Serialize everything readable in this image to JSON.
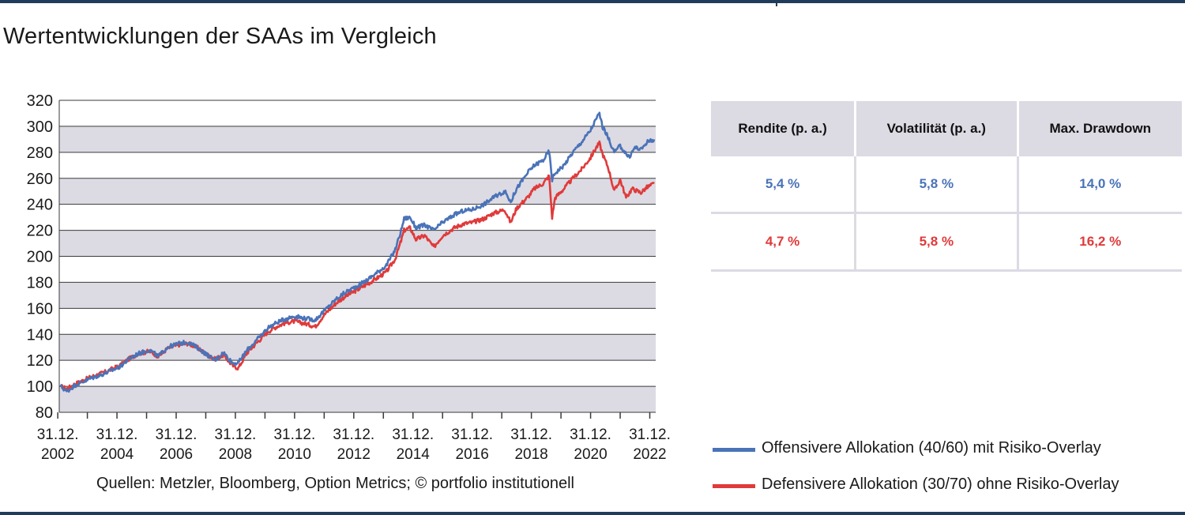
{
  "title": "Wertentwicklungen der SAAs im Vergleich",
  "source": "Quellen: Metzler, Bloomberg, Option Metrics; © portfolio institutionell",
  "colors": {
    "offensive": "#4a73b8",
    "defensive": "#e03a3a",
    "band": "#dcdae3",
    "frame": "#1f3c5a"
  },
  "table": {
    "headers": [
      "Rendite (p. a.)",
      "Volatilität (p. a.)",
      "Max. Drawdown"
    ],
    "rows": [
      {
        "color": "#4a73b8",
        "cells": [
          "5,4 %",
          "5,8 %",
          "14,0 %"
        ]
      },
      {
        "color": "#e03a3a",
        "cells": [
          "4,7 %",
          "5,8 %",
          "16,2 %"
        ]
      }
    ]
  },
  "legend": [
    {
      "label": "Offensivere Allokation (40/60) mit Risiko-Overlay",
      "color": "#4a73b8"
    },
    {
      "label": "Defensivere Allokation (30/70) ohne Risiko-Overlay",
      "color": "#e03a3a"
    }
  ],
  "chart_data": {
    "type": "line",
    "xlim": [
      2002.95,
      2023.1
    ],
    "ylim": [
      80,
      320
    ],
    "yticks": [
      80,
      100,
      120,
      140,
      160,
      180,
      200,
      220,
      240,
      260,
      280,
      300,
      320
    ],
    "xticks": [
      {
        "value": 2002.9,
        "line1": "31.12.",
        "line2": "2002"
      },
      {
        "value": 2004.9,
        "line1": "31.12.",
        "line2": "2004"
      },
      {
        "value": 2006.9,
        "line1": "31.12.",
        "line2": "2006"
      },
      {
        "value": 2008.9,
        "line1": "31.12.",
        "line2": "2008"
      },
      {
        "value": 2010.9,
        "line1": "31.12.",
        "line2": "2010"
      },
      {
        "value": 2012.9,
        "line1": "31.12.",
        "line2": "2012"
      },
      {
        "value": 2014.9,
        "line1": "31.12.",
        "line2": "2014"
      },
      {
        "value": 2016.9,
        "line1": "31.12.",
        "line2": "2016"
      },
      {
        "value": 2018.9,
        "line1": "31.12.",
        "line2": "2018"
      },
      {
        "value": 2020.9,
        "line1": "31.12.",
        "line2": "2020"
      },
      {
        "value": 2022.9,
        "line1": "31.12.",
        "line2": "2022"
      }
    ],
    "minor_xticks": [
      2003.9,
      2005.9,
      2007.9,
      2009.9,
      2011.9,
      2013.9,
      2015.9,
      2017.9,
      2019.9,
      2021.9
    ],
    "series": [
      {
        "name": "Offensivere Allokation (40/60) mit Risiko-Overlay",
        "color": "#4a73b8",
        "points": [
          [
            2003.0,
            100
          ],
          [
            2003.2,
            96
          ],
          [
            2003.5,
            101
          ],
          [
            2004.0,
            106
          ],
          [
            2004.5,
            110
          ],
          [
            2005.0,
            115
          ],
          [
            2005.3,
            121
          ],
          [
            2005.6,
            125
          ],
          [
            2006.0,
            128
          ],
          [
            2006.3,
            123
          ],
          [
            2006.6,
            130
          ],
          [
            2007.0,
            133
          ],
          [
            2007.3,
            134
          ],
          [
            2007.6,
            130
          ],
          [
            2007.9,
            125
          ],
          [
            2008.2,
            120
          ],
          [
            2008.5,
            126
          ],
          [
            2008.8,
            118
          ],
          [
            2009.0,
            118
          ],
          [
            2009.3,
            128
          ],
          [
            2009.6,
            135
          ],
          [
            2010.0,
            145
          ],
          [
            2010.3,
            149
          ],
          [
            2010.6,
            152
          ],
          [
            2010.9,
            154
          ],
          [
            2011.3,
            152
          ],
          [
            2011.6,
            151
          ],
          [
            2011.9,
            158
          ],
          [
            2012.3,
            167
          ],
          [
            2012.6,
            172
          ],
          [
            2013.0,
            177
          ],
          [
            2013.3,
            181
          ],
          [
            2013.6,
            186
          ],
          [
            2014.0,
            193
          ],
          [
            2014.3,
            205
          ],
          [
            2014.5,
            220
          ],
          [
            2014.6,
            229
          ],
          [
            2014.8,
            230
          ],
          [
            2015.0,
            222
          ],
          [
            2015.3,
            224
          ],
          [
            2015.6,
            220
          ],
          [
            2015.9,
            226
          ],
          [
            2016.3,
            232
          ],
          [
            2016.6,
            235
          ],
          [
            2016.9,
            236
          ],
          [
            2017.3,
            240
          ],
          [
            2017.6,
            245
          ],
          [
            2018.0,
            250
          ],
          [
            2018.2,
            242
          ],
          [
            2018.4,
            252
          ],
          [
            2018.8,
            265
          ],
          [
            2019.0,
            270
          ],
          [
            2019.3,
            274
          ],
          [
            2019.5,
            281
          ],
          [
            2019.6,
            259
          ],
          [
            2019.7,
            264
          ],
          [
            2020.0,
            270
          ],
          [
            2020.3,
            280
          ],
          [
            2020.6,
            288
          ],
          [
            2020.9,
            297
          ],
          [
            2021.1,
            306
          ],
          [
            2021.2,
            310
          ],
          [
            2021.3,
            300
          ],
          [
            2021.5,
            291
          ],
          [
            2021.7,
            280
          ],
          [
            2021.9,
            285
          ],
          [
            2022.2,
            276
          ],
          [
            2022.4,
            284
          ],
          [
            2022.6,
            282
          ],
          [
            2022.8,
            288
          ],
          [
            2023.05,
            290
          ]
        ]
      },
      {
        "name": "Defensivere Allokation (30/70) ohne Risiko-Overlay",
        "color": "#e03a3a",
        "points": [
          [
            2003.0,
            100
          ],
          [
            2003.2,
            98
          ],
          [
            2003.5,
            102
          ],
          [
            2004.0,
            107
          ],
          [
            2004.5,
            111
          ],
          [
            2005.0,
            116
          ],
          [
            2005.3,
            121
          ],
          [
            2005.6,
            125
          ],
          [
            2006.0,
            127
          ],
          [
            2006.3,
            123
          ],
          [
            2006.6,
            129
          ],
          [
            2007.0,
            132
          ],
          [
            2007.3,
            133
          ],
          [
            2007.6,
            130
          ],
          [
            2007.9,
            125
          ],
          [
            2008.2,
            121
          ],
          [
            2008.5,
            124
          ],
          [
            2008.8,
            116
          ],
          [
            2009.0,
            114
          ],
          [
            2009.3,
            126
          ],
          [
            2009.6,
            133
          ],
          [
            2010.0,
            142
          ],
          [
            2010.3,
            146
          ],
          [
            2010.6,
            149
          ],
          [
            2010.9,
            150
          ],
          [
            2011.3,
            148
          ],
          [
            2011.6,
            146
          ],
          [
            2011.9,
            155
          ],
          [
            2012.3,
            164
          ],
          [
            2012.6,
            169
          ],
          [
            2013.0,
            174
          ],
          [
            2013.3,
            178
          ],
          [
            2013.6,
            182
          ],
          [
            2014.0,
            188
          ],
          [
            2014.3,
            198
          ],
          [
            2014.5,
            212
          ],
          [
            2014.6,
            220
          ],
          [
            2014.8,
            222
          ],
          [
            2015.0,
            213
          ],
          [
            2015.3,
            216
          ],
          [
            2015.6,
            207
          ],
          [
            2015.9,
            216
          ],
          [
            2016.3,
            222
          ],
          [
            2016.6,
            225
          ],
          [
            2016.9,
            226
          ],
          [
            2017.3,
            229
          ],
          [
            2017.6,
            233
          ],
          [
            2018.0,
            236
          ],
          [
            2018.2,
            226
          ],
          [
            2018.4,
            237
          ],
          [
            2018.8,
            246
          ],
          [
            2019.0,
            252
          ],
          [
            2019.3,
            256
          ],
          [
            2019.5,
            262
          ],
          [
            2019.6,
            230
          ],
          [
            2019.7,
            245
          ],
          [
            2020.0,
            252
          ],
          [
            2020.3,
            260
          ],
          [
            2020.6,
            267
          ],
          [
            2020.9,
            276
          ],
          [
            2021.1,
            284
          ],
          [
            2021.2,
            287
          ],
          [
            2021.3,
            279
          ],
          [
            2021.5,
            268
          ],
          [
            2021.7,
            250
          ],
          [
            2021.9,
            259
          ],
          [
            2022.1,
            245
          ],
          [
            2022.3,
            252
          ],
          [
            2022.6,
            249
          ],
          [
            2022.8,
            253
          ],
          [
            2023.05,
            256
          ]
        ]
      }
    ]
  }
}
